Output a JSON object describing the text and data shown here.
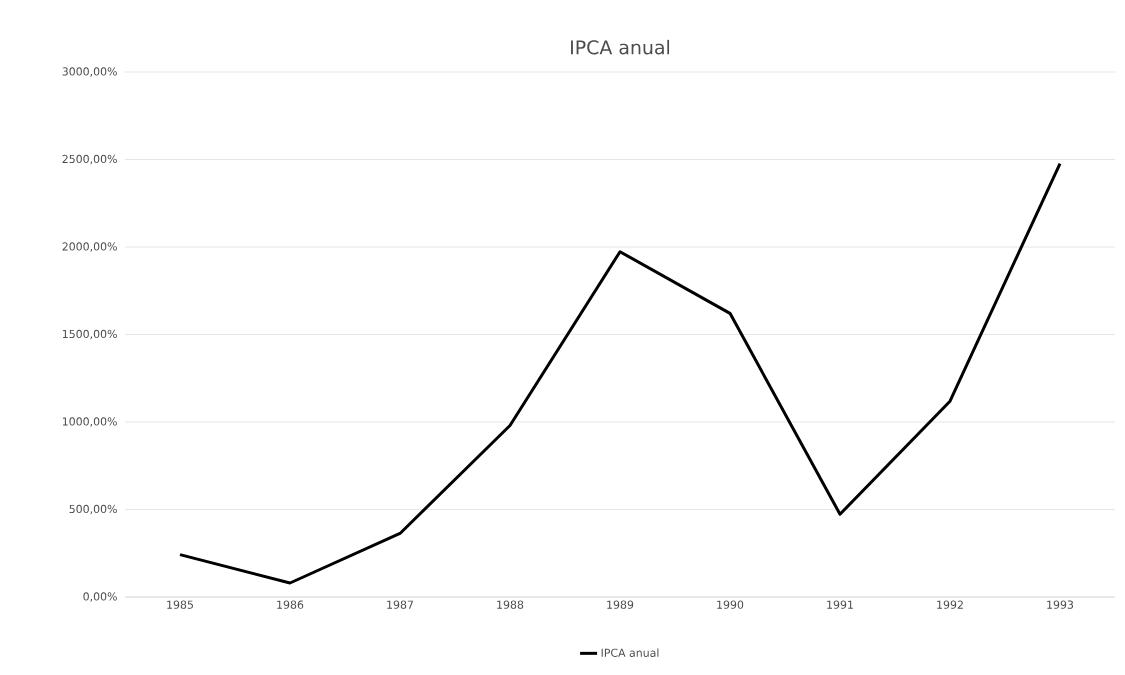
{
  "chart_data": {
    "type": "line",
    "title": "IPCA anual",
    "categories": [
      "1985",
      "1986",
      "1987",
      "1988",
      "1989",
      "1990",
      "1991",
      "1992",
      "1993"
    ],
    "series": [
      {
        "name": "IPCA anual",
        "color": "#000000",
        "values": [
          242,
          80,
          363,
          980,
          1973,
          1621,
          473,
          1119,
          2477
        ]
      }
    ],
    "ylim": [
      0,
      3000
    ],
    "yticks": [
      {
        "value": 0,
        "label": "0,00%"
      },
      {
        "value": 500,
        "label": "500,00%"
      },
      {
        "value": 1000,
        "label": "1000,00%"
      },
      {
        "value": 1500,
        "label": "1500,00%"
      },
      {
        "value": 2000,
        "label": "2000,00%"
      },
      {
        "value": 2500,
        "label": "2500,00%"
      },
      {
        "value": 3000,
        "label": "3000,00%"
      }
    ],
    "grid": "y",
    "legend": "bottom",
    "marker": "none",
    "line_style": "solid"
  }
}
